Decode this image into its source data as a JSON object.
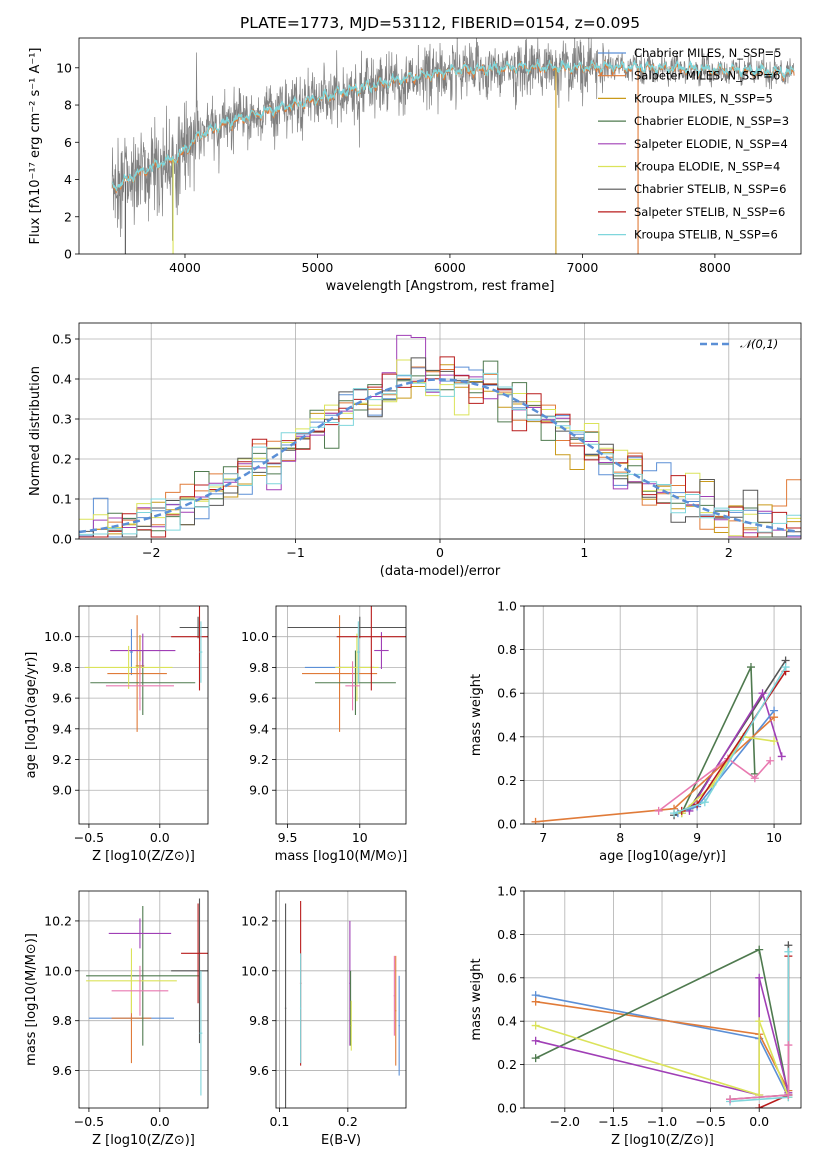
{
  "figure_title": "PLATE=1773, MJD=53112, FIBERID=0154, z=0.095",
  "legend_entries": [
    {
      "name": "Chabrier MILES, N_SSP=5",
      "color": "#5b8fd6"
    },
    {
      "name": "Salpeter MILES, N_SSP=6",
      "color": "#e07b39"
    },
    {
      "name": "Kroupa MILES, N_SSP=5",
      "color": "#c99a1b"
    },
    {
      "name": "Chabrier ELODIE, N_SSP=3",
      "color": "#4f7a4f"
    },
    {
      "name": "Salpeter ELODIE, N_SSP=4",
      "color": "#a03fb6"
    },
    {
      "name": "Kroupa ELODIE, N_SSP=4",
      "color": "#dbe35a"
    },
    {
      "name": "Chabrier STELIB, N_SSP=6",
      "color": "#555555"
    },
    {
      "name": "Salpeter STELIB, N_SSP=6",
      "color": "#b81c1c"
    },
    {
      "name": "Kroupa STELIB, N_SSP=6",
      "color": "#7fd6dc"
    }
  ],
  "chart_data": [
    {
      "id": "spectrum",
      "type": "line",
      "xlabel": "wavelength [Angstrom, rest frame]",
      "ylabel": "Flux [fλ10⁻¹⁷ erg cm⁻² s⁻¹ A⁻¹]",
      "xlim": [
        3200,
        8650
      ],
      "ylim": [
        0,
        11.6
      ],
      "xticks": [
        4000,
        5000,
        6000,
        7000,
        8000
      ],
      "yticks": [
        0,
        2,
        4,
        6,
        8,
        10
      ],
      "continuum_x": [
        3450,
        3700,
        3950,
        4100,
        4300,
        4600,
        4900,
        5200,
        5600,
        6000,
        6500,
        7000,
        7400,
        7900,
        8300,
        8600
      ],
      "continuum_y": [
        3.5,
        4.5,
        5.2,
        6.3,
        7.0,
        7.6,
        8.1,
        8.7,
        9.3,
        9.8,
        10.0,
        10.0,
        10.0,
        9.9,
        9.8,
        9.7
      ],
      "observed_color": "#808080",
      "model_colors": [
        "#e07b39",
        "#7fd6dc"
      ]
    },
    {
      "id": "residuals",
      "type": "step",
      "xlabel": "(data-model)/error",
      "ylabel": "Normed distribution",
      "xlim": [
        -2.5,
        2.5
      ],
      "ylim": [
        0,
        0.54
      ],
      "xticks": [
        -2,
        -1,
        0,
        1,
        2
      ],
      "yticks": [
        0,
        0.1,
        0.2,
        0.3,
        0.4,
        0.5
      ],
      "gaussian_label": "𝒩(0,1)",
      "gaussian_color": "#5b8fd6",
      "bin_width": 0.1
    },
    {
      "id": "age_vs_Z",
      "type": "errorbar",
      "xlabel": "Z [log10(Z/Z⊙)]",
      "ylabel": "age  [log10(age/yr)]",
      "xlim": [
        -0.57,
        0.34
      ],
      "ylim": [
        8.78,
        10.2
      ],
      "xticks": [
        -0.5,
        0.0
      ],
      "xtick_labels": [
        "−0.5",
        "0.0"
      ],
      "yticks": [
        9.0,
        9.2,
        9.4,
        9.6,
        9.8,
        10.0
      ],
      "points": [
        {
          "x": -0.2,
          "y": 9.9,
          "xerr": 0.01,
          "yerr": 0.15,
          "color": "#5b8fd6"
        },
        {
          "x": -0.16,
          "y": 9.76,
          "xerr": 0.21,
          "yerr": 0.38,
          "color": "#e07b39"
        },
        {
          "x": -0.14,
          "y": 9.81,
          "xerr": 0.03,
          "yerr": 0.2,
          "color": "#c99a1b"
        },
        {
          "x": -0.12,
          "y": 9.7,
          "xerr": 0.37,
          "yerr": 0.21,
          "color": "#4f7a4f"
        },
        {
          "x": -0.12,
          "y": 9.91,
          "xerr": 0.23,
          "yerr": 0.11,
          "color": "#a03fb6"
        },
        {
          "x": -0.22,
          "y": 9.8,
          "xerr": 0.31,
          "yerr": 0.14,
          "color": "#dbe35a"
        },
        {
          "x": 0.27,
          "y": 10.06,
          "xerr": 0.13,
          "yerr": 0.07,
          "color": "#555555"
        },
        {
          "x": 0.28,
          "y": 10.0,
          "xerr": 0.2,
          "yerr": 0.35,
          "color": "#b81c1c"
        },
        {
          "x": 0.29,
          "y": 9.9,
          "xerr": 0.01,
          "yerr": 0.2,
          "color": "#7fd6dc"
        },
        {
          "x": -0.14,
          "y": 9.68,
          "xerr": 0.24,
          "yerr": 0.16,
          "color": "#e879b0"
        }
      ]
    },
    {
      "id": "age_vs_mass",
      "type": "errorbar",
      "xlabel": "mass [log10(M/M⊙)]",
      "ylabel": "",
      "xlim": [
        9.42,
        10.32
      ],
      "ylim": [
        8.78,
        10.2
      ],
      "xticks": [
        9.5,
        10.0
      ],
      "yticks": [
        9.0,
        9.2,
        9.4,
        9.6,
        9.8,
        10.0
      ],
      "points": [
        {
          "x": 9.86,
          "y": 9.8,
          "xerr": 0.24,
          "yerr": 0.01,
          "color": "#5b8fd6"
        },
        {
          "x": 9.86,
          "y": 9.76,
          "xerr": 0.26,
          "yerr": 0.38,
          "color": "#e07b39"
        },
        {
          "x": 9.97,
          "y": 9.7,
          "xerr": 0.28,
          "yerr": 0.21,
          "color": "#4f7a4f"
        },
        {
          "x": 10.15,
          "y": 9.91,
          "xerr": 0.05,
          "yerr": 0.12,
          "color": "#a03fb6"
        },
        {
          "x": 9.98,
          "y": 9.8,
          "xerr": 0.15,
          "yerr": 0.22,
          "color": "#dbe35a"
        },
        {
          "x": 10.0,
          "y": 10.06,
          "xerr": 0.5,
          "yerr": 0.07,
          "color": "#555555"
        },
        {
          "x": 10.08,
          "y": 10.0,
          "xerr": 0.24,
          "yerr": 0.35,
          "color": "#b81c1c"
        },
        {
          "x": 9.99,
          "y": 9.9,
          "xerr": 0.01,
          "yerr": 0.2,
          "color": "#7fd6dc"
        },
        {
          "x": 9.95,
          "y": 9.68,
          "xerr": 0.05,
          "yerr": 0.16,
          "color": "#e879b0"
        }
      ]
    },
    {
      "id": "weight_vs_age",
      "type": "line",
      "xlabel": "age  [log10(age/yr)]",
      "ylabel": "mass weight",
      "xlim": [
        6.75,
        10.35
      ],
      "ylim": [
        0,
        1.0
      ],
      "xticks": [
        7,
        8,
        9,
        10
      ],
      "yticks": [
        0.0,
        0.2,
        0.4,
        0.6,
        0.8,
        1.0
      ],
      "series": [
        {
          "color": "#4f7a4f",
          "x": [
            8.8,
            9.7,
            9.75
          ],
          "y": [
            0.05,
            0.72,
            0.23
          ]
        },
        {
          "color": "#555555",
          "x": [
            8.7,
            8.9,
            10.15
          ],
          "y": [
            0.04,
            0.07,
            0.75
          ]
        },
        {
          "color": "#a03fb6",
          "x": [
            8.9,
            9.85,
            10.1
          ],
          "y": [
            0.06,
            0.6,
            0.31
          ]
        },
        {
          "color": "#5b8fd6",
          "x": [
            8.75,
            9.0,
            10.0
          ],
          "y": [
            0.05,
            0.08,
            0.52
          ]
        },
        {
          "color": "#e07b39",
          "x": [
            6.9,
            8.7,
            10.0
          ],
          "y": [
            0.01,
            0.07,
            0.49
          ]
        },
        {
          "color": "#dbe35a",
          "x": [
            8.8,
            9.2,
            9.6,
            10.0
          ],
          "y": [
            0.05,
            0.18,
            0.4,
            0.38
          ]
        },
        {
          "color": "#e879b0",
          "x": [
            8.5,
            9.4,
            9.75,
            9.95
          ],
          "y": [
            0.06,
            0.3,
            0.21,
            0.29
          ]
        },
        {
          "color": "#b81c1c",
          "x": [
            8.8,
            9.0,
            10.15
          ],
          "y": [
            0.06,
            0.09,
            0.7
          ]
        },
        {
          "color": "#7fd6dc",
          "x": [
            8.7,
            9.1,
            10.15
          ],
          "y": [
            0.05,
            0.1,
            0.72
          ]
        }
      ]
    },
    {
      "id": "mass_vs_Z",
      "type": "errorbar",
      "xlabel": "Z [log10(Z/Z⊙)]",
      "ylabel": "mass [log10(M/M⊙)]",
      "xlim": [
        -0.57,
        0.34
      ],
      "ylim": [
        9.45,
        10.32
      ],
      "xticks": [
        -0.5,
        0.0
      ],
      "xtick_labels": [
        "−0.5",
        "0.0"
      ],
      "yticks": [
        9.6,
        9.8,
        10.0,
        10.2
      ],
      "points": [
        {
          "x": -0.2,
          "y": 9.81,
          "xerr": 0.3,
          "yerr": 0.01,
          "color": "#5b8fd6"
        },
        {
          "x": -0.2,
          "y": 9.81,
          "xerr": 0.14,
          "yerr": 0.18,
          "color": "#e07b39"
        },
        {
          "x": -0.12,
          "y": 9.98,
          "xerr": 0.4,
          "yerr": 0.28,
          "color": "#4f7a4f"
        },
        {
          "x": -0.14,
          "y": 10.15,
          "xerr": 0.22,
          "yerr": 0.06,
          "color": "#a03fb6"
        },
        {
          "x": -0.2,
          "y": 9.96,
          "xerr": 0.32,
          "yerr": 0.13,
          "color": "#dbe35a"
        },
        {
          "x": 0.28,
          "y": 10.0,
          "xerr": 0.2,
          "yerr": 0.29,
          "color": "#555555"
        },
        {
          "x": 0.27,
          "y": 10.07,
          "xerr": 0.12,
          "yerr": 0.2,
          "color": "#b81c1c"
        },
        {
          "x": 0.29,
          "y": 9.75,
          "xerr": 0.01,
          "yerr": 0.25,
          "color": "#7fd6dc"
        },
        {
          "x": -0.14,
          "y": 9.92,
          "xerr": 0.2,
          "yerr": 0.1,
          "color": "#e879b0"
        }
      ]
    },
    {
      "id": "mass_vs_ebv",
      "type": "errorbar",
      "xlabel": "E(B-V)",
      "ylabel": "",
      "xlim": [
        0.095,
        0.285
      ],
      "ylim": [
        9.45,
        10.32
      ],
      "xticks": [
        0.1,
        0.2
      ],
      "yticks": [
        9.6,
        9.8,
        10.0,
        10.2
      ],
      "points": [
        {
          "x": 0.109,
          "y": 9.85,
          "xerr": 0.001,
          "yerr": 0.42,
          "color": "#555555"
        },
        {
          "x": 0.131,
          "y": 9.95,
          "xerr": 0.001,
          "yerr": 0.33,
          "color": "#b81c1c"
        },
        {
          "x": 0.131,
          "y": 9.85,
          "xerr": 0.001,
          "yerr": 0.22,
          "color": "#7fd6dc"
        },
        {
          "x": 0.203,
          "y": 9.95,
          "xerr": 0.001,
          "yerr": 0.25,
          "color": "#a03fb6"
        },
        {
          "x": 0.204,
          "y": 9.85,
          "xerr": 0.001,
          "yerr": 0.15,
          "color": "#4f7a4f"
        },
        {
          "x": 0.205,
          "y": 9.78,
          "xerr": 0.001,
          "yerr": 0.1,
          "color": "#dbe35a"
        },
        {
          "x": 0.27,
          "y": 9.84,
          "xerr": 0.001,
          "yerr": 0.22,
          "color": "#e07b39"
        },
        {
          "x": 0.275,
          "y": 9.78,
          "xerr": 0.001,
          "yerr": 0.2,
          "color": "#5b8fd6"
        },
        {
          "x": 0.268,
          "y": 9.9,
          "xerr": 0.001,
          "yerr": 0.16,
          "color": "#e879b0"
        }
      ]
    },
    {
      "id": "weight_vs_Z",
      "type": "line",
      "xlabel": "Z [log10(Z/Z⊙)]",
      "ylabel": "mass weight",
      "xlim": [
        -2.42,
        0.43
      ],
      "ylim": [
        0,
        1.0
      ],
      "xticks": [
        -2.0,
        -1.5,
        -1.0,
        -0.5,
        0.0
      ],
      "xtick_labels": [
        "−2.0",
        "−1.5",
        "−1.0",
        "−0.5",
        "0.0"
      ],
      "yticks": [
        0.0,
        0.2,
        0.4,
        0.6,
        0.8,
        1.0
      ],
      "series": [
        {
          "color": "#5b8fd6",
          "x": [
            -2.3,
            0.0,
            0.3
          ],
          "y": [
            0.52,
            0.32,
            0.05
          ]
        },
        {
          "color": "#e07b39",
          "x": [
            -2.3,
            0.0,
            0.3
          ],
          "y": [
            0.49,
            0.34,
            0.08
          ]
        },
        {
          "color": "#4f7a4f",
          "x": [
            -2.3,
            0.0,
            0.3
          ],
          "y": [
            0.23,
            0.73,
            0.06
          ]
        },
        {
          "color": "#a03fb6",
          "x": [
            -2.3,
            0.0,
            0.0,
            0.3
          ],
          "y": [
            0.31,
            0.06,
            0.6,
            0.07
          ]
        },
        {
          "color": "#dbe35a",
          "x": [
            -2.3,
            0.0,
            0.0,
            0.3
          ],
          "y": [
            0.38,
            0.06,
            0.4,
            0.05
          ]
        },
        {
          "color": "#555555",
          "x": [
            -0.3,
            0.3,
            0.3
          ],
          "y": [
            0.04,
            0.06,
            0.75
          ]
        },
        {
          "color": "#b81c1c",
          "x": [
            0.0,
            0.3,
            0.3
          ],
          "y": [
            0.0,
            0.06,
            0.7
          ]
        },
        {
          "color": "#7fd6dc",
          "x": [
            -0.3,
            0.3,
            0.3
          ],
          "y": [
            0.03,
            0.05,
            0.72
          ]
        },
        {
          "color": "#e879b0",
          "x": [
            -0.3,
            0.3,
            0.3
          ],
          "y": [
            0.04,
            0.06,
            0.29
          ]
        }
      ]
    }
  ]
}
